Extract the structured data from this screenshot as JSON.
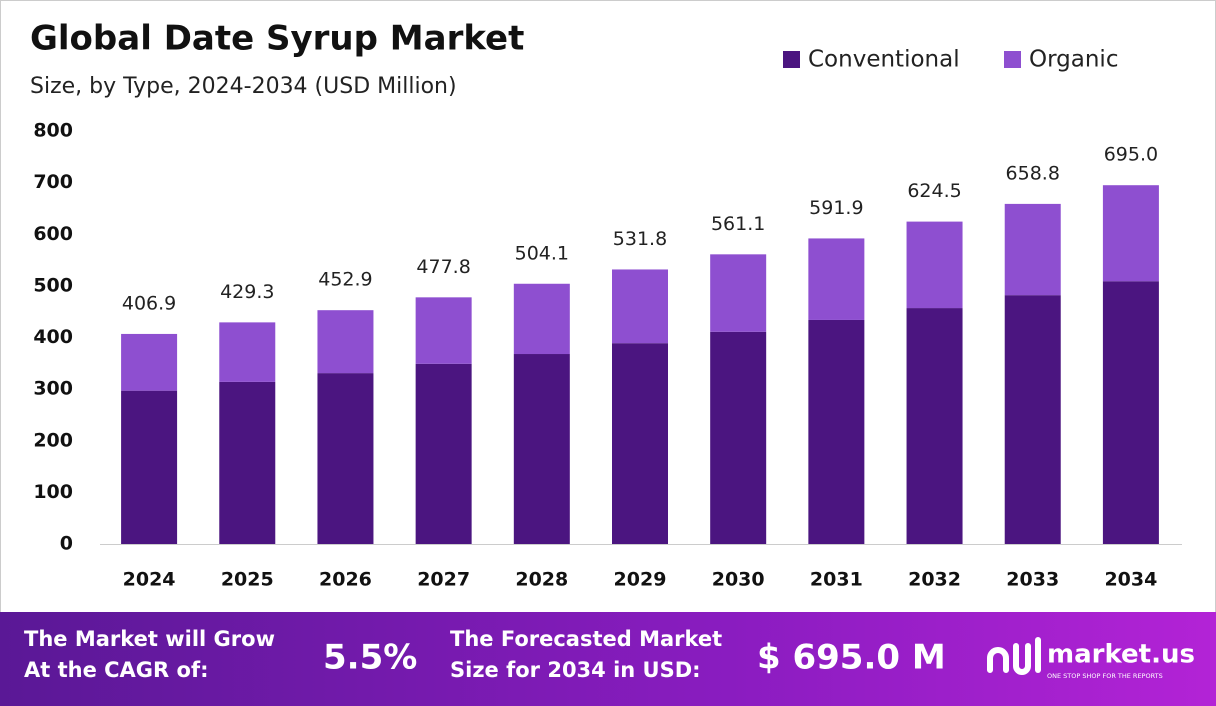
{
  "chart_data": {
    "type": "stacked_bar",
    "title": "Global Date Syrup Market",
    "subtitle": "Size, by Type, 2024-2034 (USD Million)",
    "categories": [
      "2024",
      "2025",
      "2026",
      "2027",
      "2028",
      "2029",
      "2030",
      "2031",
      "2032",
      "2033",
      "2034"
    ],
    "series": [
      {
        "name": "Conventional",
        "color": "#4b1580",
        "values": [
          297,
          314,
          331,
          349,
          368,
          389,
          411,
          434,
          457,
          482,
          509
        ]
      },
      {
        "name": "Organic",
        "color": "#8e4fd0",
        "values": [
          109.9,
          115.3,
          121.9,
          128.8,
          136.1,
          142.8,
          150.1,
          157.9,
          167.5,
          176.8,
          186.0
        ]
      }
    ],
    "totals": [
      406.9,
      429.3,
      452.9,
      477.8,
      504.1,
      531.8,
      561.1,
      591.9,
      624.5,
      658.8,
      695.0
    ],
    "totals_labels": [
      "406.9",
      "429.3",
      "452.9",
      "477.8",
      "504.1",
      "531.8",
      "561.1",
      "591.9",
      "624.5",
      "658.8",
      "695.0"
    ],
    "ylim": [
      0,
      800
    ],
    "yticks": [
      0,
      100,
      200,
      300,
      400,
      500,
      600,
      700,
      800
    ],
    "grid": false,
    "legend": "top-right"
  },
  "footer": {
    "cagr_text": [
      "The Market will Grow",
      "At the CAGR of:"
    ],
    "cagr_value": "5.5%",
    "forecast_text": [
      "The Forecasted Market",
      "Size for 2034 in USD:"
    ],
    "forecast_value": "$ 695.0 M",
    "brand": "market.us",
    "tagline": "ONE STOP SHOP FOR THE REPORTS"
  }
}
